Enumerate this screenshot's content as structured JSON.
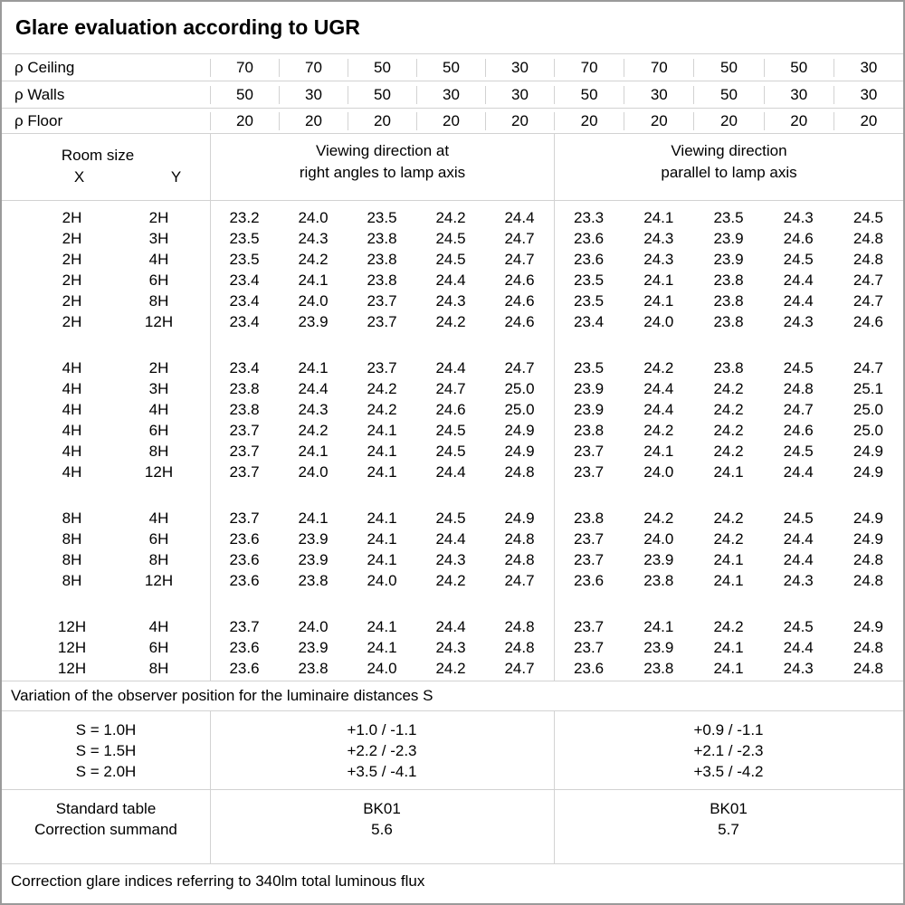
{
  "title": "Glare evaluation according to UGR",
  "reflectance_rows": [
    {
      "label": "ρ Ceiling",
      "values": [
        "70",
        "70",
        "50",
        "50",
        "30",
        "70",
        "70",
        "50",
        "50",
        "30"
      ]
    },
    {
      "label": "ρ Walls",
      "values": [
        "50",
        "30",
        "50",
        "30",
        "30",
        "50",
        "30",
        "50",
        "30",
        "30"
      ]
    },
    {
      "label": "ρ Floor",
      "values": [
        "20",
        "20",
        "20",
        "20",
        "20",
        "20",
        "20",
        "20",
        "20",
        "20"
      ]
    }
  ],
  "header": {
    "room_size": "Room size",
    "x": "X",
    "y": "Y",
    "left_title": [
      "Viewing direction at",
      "right angles to lamp axis"
    ],
    "right_title": [
      "Viewing direction",
      "parallel to lamp axis"
    ]
  },
  "ugr_blocks": [
    {
      "rows": [
        {
          "x": "2H",
          "y": "2H",
          "left": [
            "23.2",
            "24.0",
            "23.5",
            "24.2",
            "24.4"
          ],
          "right": [
            "23.3",
            "24.1",
            "23.5",
            "24.3",
            "24.5"
          ]
        },
        {
          "x": "2H",
          "y": "3H",
          "left": [
            "23.5",
            "24.3",
            "23.8",
            "24.5",
            "24.7"
          ],
          "right": [
            "23.6",
            "24.3",
            "23.9",
            "24.6",
            "24.8"
          ]
        },
        {
          "x": "2H",
          "y": "4H",
          "left": [
            "23.5",
            "24.2",
            "23.8",
            "24.5",
            "24.7"
          ],
          "right": [
            "23.6",
            "24.3",
            "23.9",
            "24.5",
            "24.8"
          ]
        },
        {
          "x": "2H",
          "y": "6H",
          "left": [
            "23.4",
            "24.1",
            "23.8",
            "24.4",
            "24.6"
          ],
          "right": [
            "23.5",
            "24.1",
            "23.8",
            "24.4",
            "24.7"
          ]
        },
        {
          "x": "2H",
          "y": "8H",
          "left": [
            "23.4",
            "24.0",
            "23.7",
            "24.3",
            "24.6"
          ],
          "right": [
            "23.5",
            "24.1",
            "23.8",
            "24.4",
            "24.7"
          ]
        },
        {
          "x": "2H",
          "y": "12H",
          "left": [
            "23.4",
            "23.9",
            "23.7",
            "24.2",
            "24.6"
          ],
          "right": [
            "23.4",
            "24.0",
            "23.8",
            "24.3",
            "24.6"
          ]
        }
      ]
    },
    {
      "rows": [
        {
          "x": "4H",
          "y": "2H",
          "left": [
            "23.4",
            "24.1",
            "23.7",
            "24.4",
            "24.7"
          ],
          "right": [
            "23.5",
            "24.2",
            "23.8",
            "24.5",
            "24.7"
          ]
        },
        {
          "x": "4H",
          "y": "3H",
          "left": [
            "23.8",
            "24.4",
            "24.2",
            "24.7",
            "25.0"
          ],
          "right": [
            "23.9",
            "24.4",
            "24.2",
            "24.8",
            "25.1"
          ]
        },
        {
          "x": "4H",
          "y": "4H",
          "left": [
            "23.8",
            "24.3",
            "24.2",
            "24.6",
            "25.0"
          ],
          "right": [
            "23.9",
            "24.4",
            "24.2",
            "24.7",
            "25.0"
          ]
        },
        {
          "x": "4H",
          "y": "6H",
          "left": [
            "23.7",
            "24.2",
            "24.1",
            "24.5",
            "24.9"
          ],
          "right": [
            "23.8",
            "24.2",
            "24.2",
            "24.6",
            "25.0"
          ]
        },
        {
          "x": "4H",
          "y": "8H",
          "left": [
            "23.7",
            "24.1",
            "24.1",
            "24.5",
            "24.9"
          ],
          "right": [
            "23.7",
            "24.1",
            "24.2",
            "24.5",
            "24.9"
          ]
        },
        {
          "x": "4H",
          "y": "12H",
          "left": [
            "23.7",
            "24.0",
            "24.1",
            "24.4",
            "24.8"
          ],
          "right": [
            "23.7",
            "24.0",
            "24.1",
            "24.4",
            "24.9"
          ]
        }
      ]
    },
    {
      "rows": [
        {
          "x": "8H",
          "y": "4H",
          "left": [
            "23.7",
            "24.1",
            "24.1",
            "24.5",
            "24.9"
          ],
          "right": [
            "23.8",
            "24.2",
            "24.2",
            "24.5",
            "24.9"
          ]
        },
        {
          "x": "8H",
          "y": "6H",
          "left": [
            "23.6",
            "23.9",
            "24.1",
            "24.4",
            "24.8"
          ],
          "right": [
            "23.7",
            "24.0",
            "24.2",
            "24.4",
            "24.9"
          ]
        },
        {
          "x": "8H",
          "y": "8H",
          "left": [
            "23.6",
            "23.9",
            "24.1",
            "24.3",
            "24.8"
          ],
          "right": [
            "23.7",
            "23.9",
            "24.1",
            "24.4",
            "24.8"
          ]
        },
        {
          "x": "8H",
          "y": "12H",
          "left": [
            "23.6",
            "23.8",
            "24.0",
            "24.2",
            "24.7"
          ],
          "right": [
            "23.6",
            "23.8",
            "24.1",
            "24.3",
            "24.8"
          ]
        }
      ]
    },
    {
      "rows": [
        {
          "x": "12H",
          "y": "4H",
          "left": [
            "23.7",
            "24.0",
            "24.1",
            "24.4",
            "24.8"
          ],
          "right": [
            "23.7",
            "24.1",
            "24.2",
            "24.5",
            "24.9"
          ]
        },
        {
          "x": "12H",
          "y": "6H",
          "left": [
            "23.6",
            "23.9",
            "24.1",
            "24.3",
            "24.8"
          ],
          "right": [
            "23.7",
            "23.9",
            "24.1",
            "24.4",
            "24.8"
          ]
        },
        {
          "x": "12H",
          "y": "8H",
          "left": [
            "23.6",
            "23.8",
            "24.0",
            "24.2",
            "24.7"
          ],
          "right": [
            "23.6",
            "23.8",
            "24.1",
            "24.3",
            "24.8"
          ]
        }
      ]
    }
  ],
  "variation_note": "Variation of the observer position for the luminaire distances S",
  "variation": {
    "labels": [
      "S = 1.0H",
      "S = 1.5H",
      "S = 2.0H"
    ],
    "left": [
      "+1.0 / -1.1",
      "+2.2 / -2.3",
      "+3.5 / -4.1"
    ],
    "right": [
      "+0.9 / -1.1",
      "+2.1 / -2.3",
      "+3.5 / -4.2"
    ]
  },
  "summary": {
    "labels": [
      "Standard table",
      "Correction summand"
    ],
    "left": [
      "BK01",
      "5.6"
    ],
    "right": [
      "BK01",
      "5.7"
    ]
  },
  "footer_note": "Correction glare indices referring to 340lm total luminous flux",
  "colors": {
    "background": "#ffffff",
    "text": "#000000",
    "grid_line": "#d2d2d2",
    "outer_frame": "#9a9a9a"
  }
}
